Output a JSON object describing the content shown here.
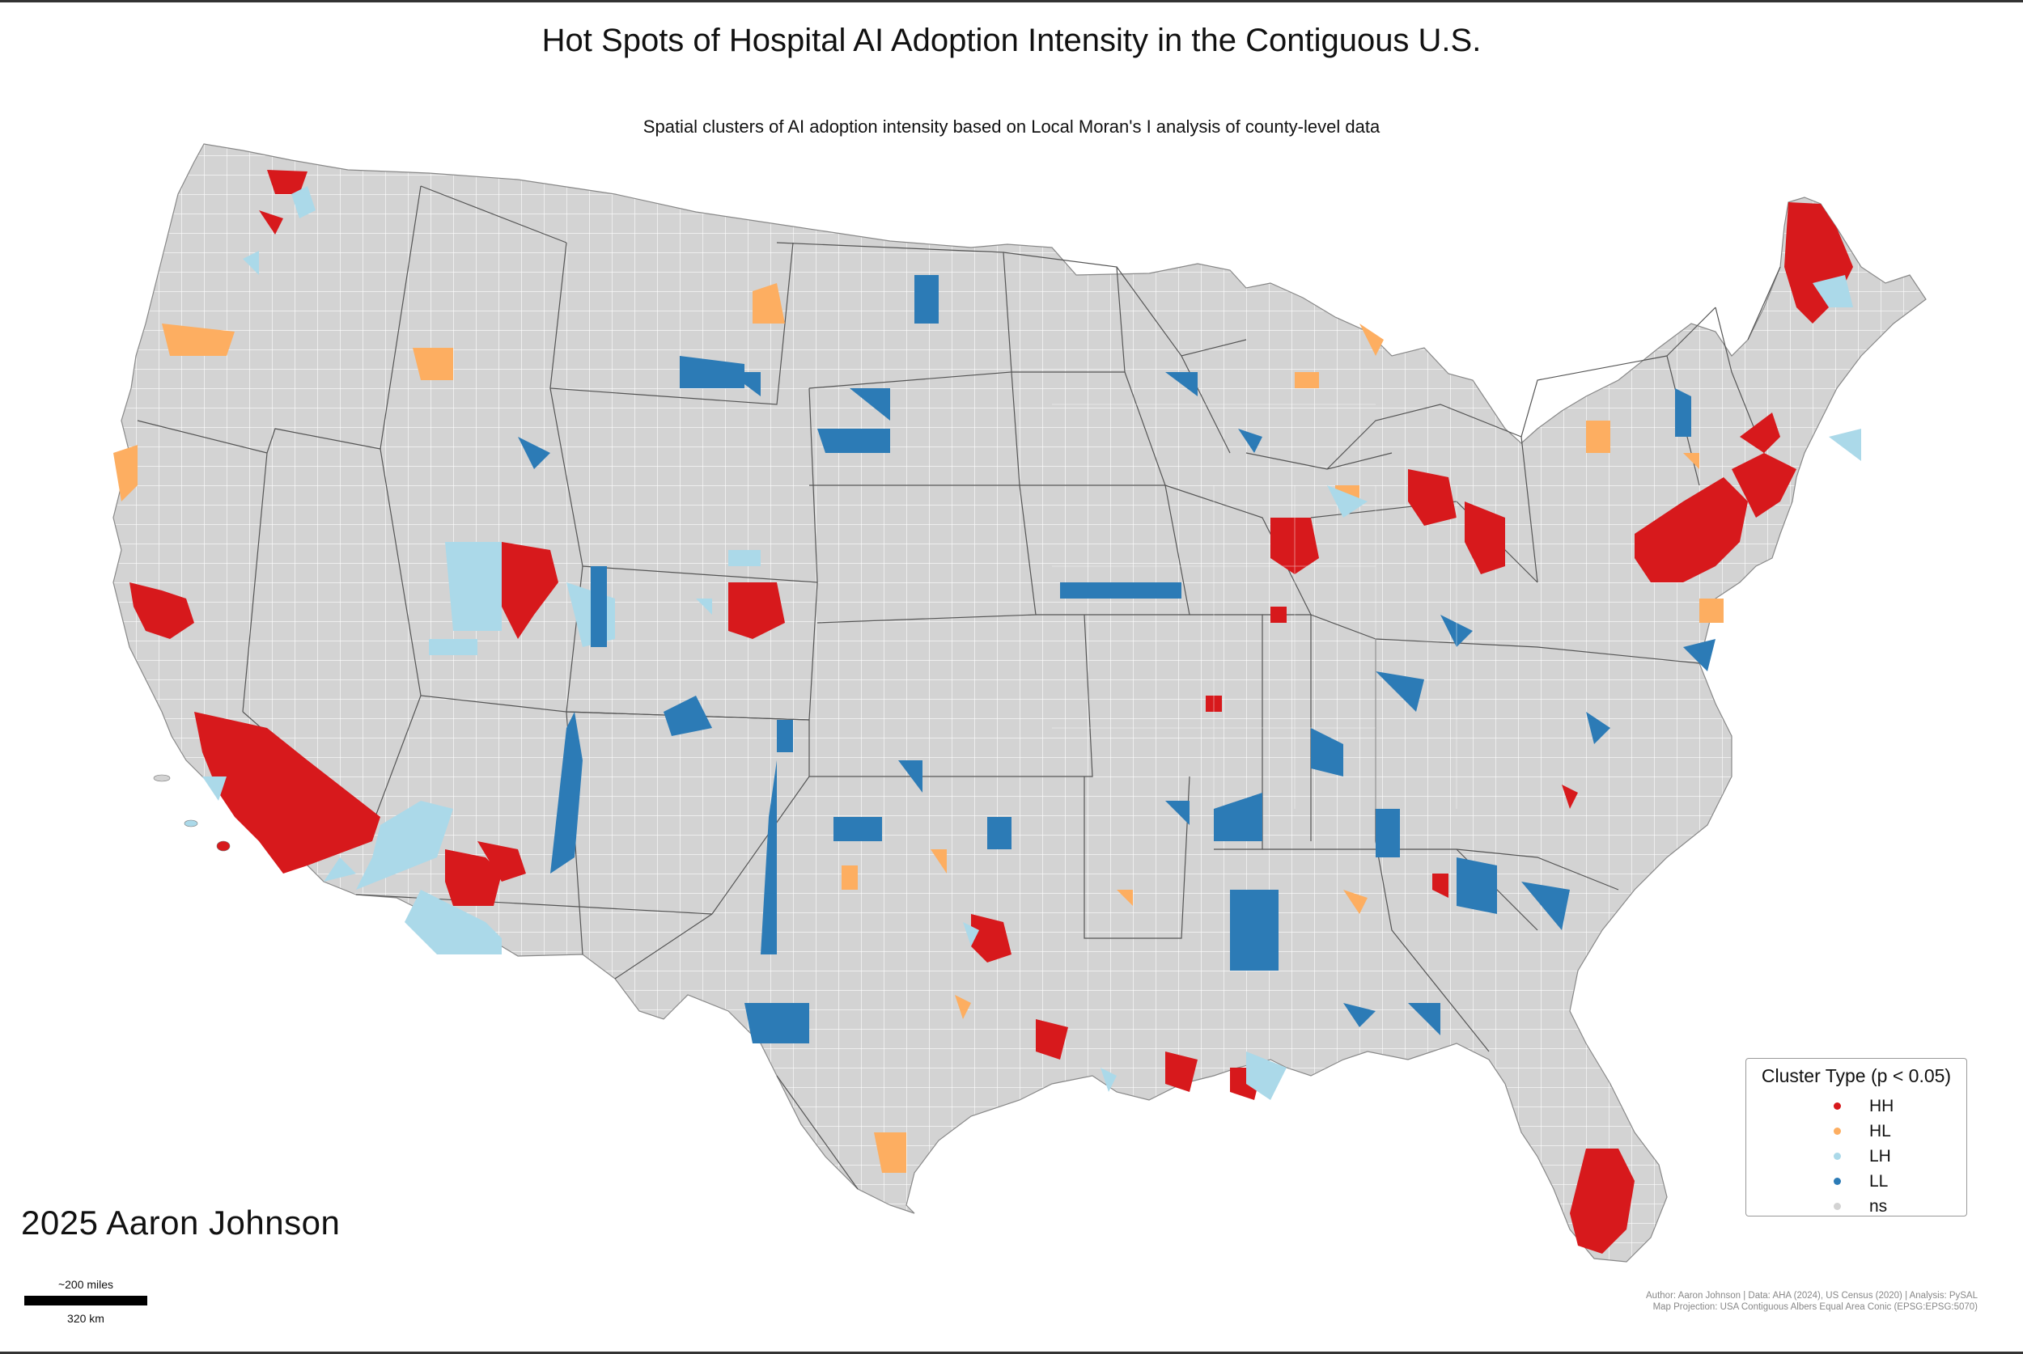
{
  "title": "Hot Spots of Hospital AI Adoption Intensity in the Contiguous U.S.",
  "subtitle": "Spatial clusters of AI adoption intensity based on Local Moran's I analysis of county-level data",
  "legend": {
    "title": "Cluster Type (p < 0.05)",
    "items": [
      {
        "label": "HH",
        "color": "#d7191c"
      },
      {
        "label": "HL",
        "color": "#fdae61"
      },
      {
        "label": "LH",
        "color": "#abd9e9"
      },
      {
        "label": "LL",
        "color": "#2c7bb6"
      },
      {
        "label": "ns",
        "color": "#d3d3d3"
      }
    ]
  },
  "credit": "2025 Aaron Johnson",
  "scale": {
    "top_label": "~200 miles",
    "bottom_label": "320 km"
  },
  "attribution": {
    "line1": "Author: Aaron Johnson | Data: AHA (2024), US Census (2020) | Analysis: PySAL",
    "line2": "Map Projection: USA Contiguous Albers Equal Area Conic (EPSG:EPSG:5070)"
  },
  "map": {
    "base_color": "#d3d3d3",
    "border_color": "#ffffff",
    "state_line_color": "#555555"
  }
}
